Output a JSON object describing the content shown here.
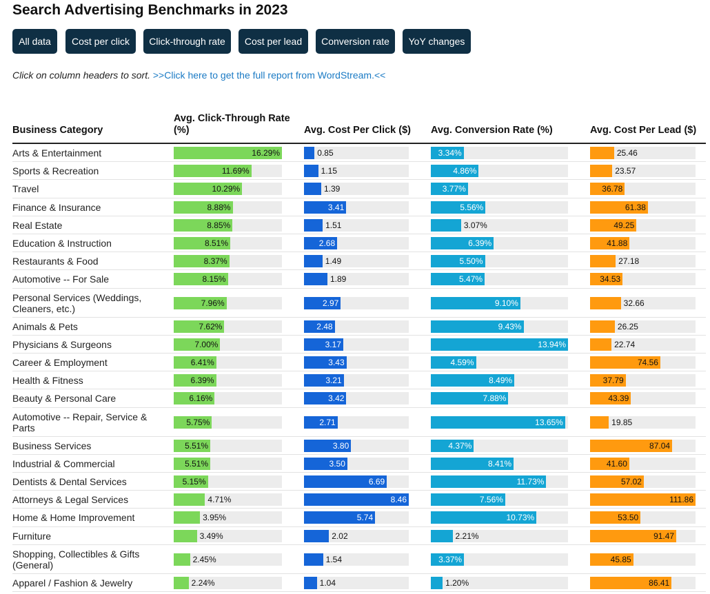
{
  "page": {
    "title": "Search Advertising Benchmarks in 2023",
    "filters": [
      "All data",
      "Cost per click",
      "Click-through rate",
      "Cost per lead",
      "Conversion rate",
      "YoY changes"
    ],
    "note_text": "Click on column headers to sort.",
    "note_link": ">>Click here to get the full report from WordStream.<<",
    "colors": {
      "button_bg": "#0f2f44",
      "ctr": "#7cd75a",
      "cpc": "#1565d8",
      "conv": "#14a5d4",
      "cpl": "#ff9a0f",
      "track": "#ececec",
      "link": "#1a7ac4"
    }
  },
  "chart_data": {
    "type": "table",
    "columns": [
      "Business Category",
      "Avg. Click-Through Rate (%)",
      "Avg. Cost Per Click ($)",
      "Avg. Conversion Rate (%)",
      "Avg. Cost Per Lead ($)"
    ],
    "rows": [
      {
        "category": "Arts & Entertainment",
        "ctr": "16.29%",
        "cpc": "0.85",
        "conv": "3.34%",
        "cpl": "25.46"
      },
      {
        "category": "Sports & Recreation",
        "ctr": "11.69%",
        "cpc": "1.15",
        "conv": "4.86%",
        "cpl": "23.57"
      },
      {
        "category": "Travel",
        "ctr": "10.29%",
        "cpc": "1.39",
        "conv": "3.77%",
        "cpl": "36.78"
      },
      {
        "category": "Finance & Insurance",
        "ctr": "8.88%",
        "cpc": "3.41",
        "conv": "5.56%",
        "cpl": "61.38"
      },
      {
        "category": "Real Estate",
        "ctr": "8.85%",
        "cpc": "1.51",
        "conv": "3.07%",
        "cpl": "49.25"
      },
      {
        "category": "Education & Instruction",
        "ctr": "8.51%",
        "cpc": "2.68",
        "conv": "6.39%",
        "cpl": "41.88"
      },
      {
        "category": "Restaurants & Food",
        "ctr": "8.37%",
        "cpc": "1.49",
        "conv": "5.50%",
        "cpl": "27.18"
      },
      {
        "category": "Automotive -- For Sale",
        "ctr": "8.15%",
        "cpc": "1.89",
        "conv": "5.47%",
        "cpl": "34.53"
      },
      {
        "category": "Personal Services (Weddings, Cleaners, etc.)",
        "ctr": "7.96%",
        "cpc": "2.97",
        "conv": "9.10%",
        "cpl": "32.66"
      },
      {
        "category": "Animals & Pets",
        "ctr": "7.62%",
        "cpc": "2.48",
        "conv": "9.43%",
        "cpl": "26.25"
      },
      {
        "category": "Physicians & Surgeons",
        "ctr": "7.00%",
        "cpc": "3.17",
        "conv": "13.94%",
        "cpl": "22.74"
      },
      {
        "category": "Career & Employment",
        "ctr": "6.41%",
        "cpc": "3.43",
        "conv": "4.59%",
        "cpl": "74.56"
      },
      {
        "category": "Health & Fitness",
        "ctr": "6.39%",
        "cpc": "3.21",
        "conv": "8.49%",
        "cpl": "37.79"
      },
      {
        "category": "Beauty & Personal Care",
        "ctr": "6.16%",
        "cpc": "3.42",
        "conv": "7.88%",
        "cpl": "43.39"
      },
      {
        "category": "Automotive -- Repair, Service & Parts",
        "ctr": "5.75%",
        "cpc": "2.71",
        "conv": "13.65%",
        "cpl": "19.85"
      },
      {
        "category": "Business Services",
        "ctr": "5.51%",
        "cpc": "3.80",
        "conv": "4.37%",
        "cpl": "87.04"
      },
      {
        "category": "Industrial & Commercial",
        "ctr": "5.51%",
        "cpc": "3.50",
        "conv": "8.41%",
        "cpl": "41.60"
      },
      {
        "category": "Dentists & Dental Services",
        "ctr": "5.15%",
        "cpc": "6.69",
        "conv": "11.73%",
        "cpl": "57.02"
      },
      {
        "category": "Attorneys & Legal Services",
        "ctr": "4.71%",
        "cpc": "8.46",
        "conv": "7.56%",
        "cpl": "111.86"
      },
      {
        "category": "Home & Home Improvement",
        "ctr": "3.95%",
        "cpc": "5.74",
        "conv": "10.73%",
        "cpl": "53.50"
      },
      {
        "category": "Furniture",
        "ctr": "3.49%",
        "cpc": "2.02",
        "conv": "2.21%",
        "cpl": "91.47"
      },
      {
        "category": "Shopping, Collectibles & Gifts (General)",
        "ctr": "2.45%",
        "cpc": "1.54",
        "conv": "3.37%",
        "cpl": "45.85"
      },
      {
        "category": "Apparel / Fashion & Jewelry",
        "ctr": "2.24%",
        "cpc": "1.04",
        "conv": "1.20%",
        "cpl": "86.41"
      }
    ]
  }
}
